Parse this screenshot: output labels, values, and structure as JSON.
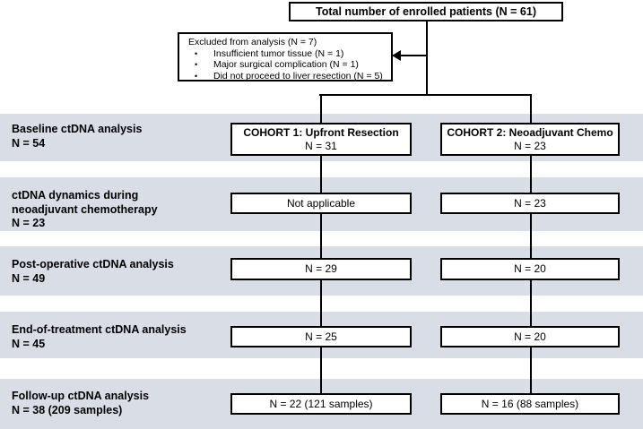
{
  "colors": {
    "band_background": "#d9dee6",
    "line_color": "#000000",
    "box_border": "#000000",
    "box_background": "#ffffff",
    "page_background": "#ffffff"
  },
  "top_box": {
    "text": "Total number of enrolled patients (N = 61)"
  },
  "excluded_box": {
    "title": "Excluded from analysis (N = 7)",
    "bullet": "•",
    "items": [
      "Insufficient tumor tissue (N = 1)",
      "Major surgical complication (N = 1)",
      "Did not proceed to liver resection (N = 5)"
    ]
  },
  "cohort_boxes": [
    {
      "title": "COHORT 1: Upfront Resection",
      "n": "N = 31"
    },
    {
      "title": "COHORT 2: Neoadjuvant Chemo",
      "n": "N = 23"
    }
  ],
  "rows": [
    {
      "label_lines": [
        "Baseline ctDNA analysis",
        "N = 54"
      ]
    },
    {
      "label_lines": [
        "ctDNA dynamics during",
        "neoadjuvant chemotherapy",
        "N = 23"
      ],
      "col1": "Not applicable",
      "col2": "N = 23"
    },
    {
      "label_lines": [
        "Post-operative ctDNA analysis",
        "N = 49"
      ],
      "col1": "N = 29",
      "col2": "N = 20"
    },
    {
      "label_lines": [
        "End-of-treatment ctDNA analysis",
        "N = 45"
      ],
      "col1": "N = 25",
      "col2": "N = 20"
    },
    {
      "label_lines": [
        "Follow-up ctDNA analysis",
        "N = 38 (209 samples)"
      ],
      "col1": "N = 22 (121 samples)",
      "col2": "N = 16 (88 samples)"
    }
  ]
}
